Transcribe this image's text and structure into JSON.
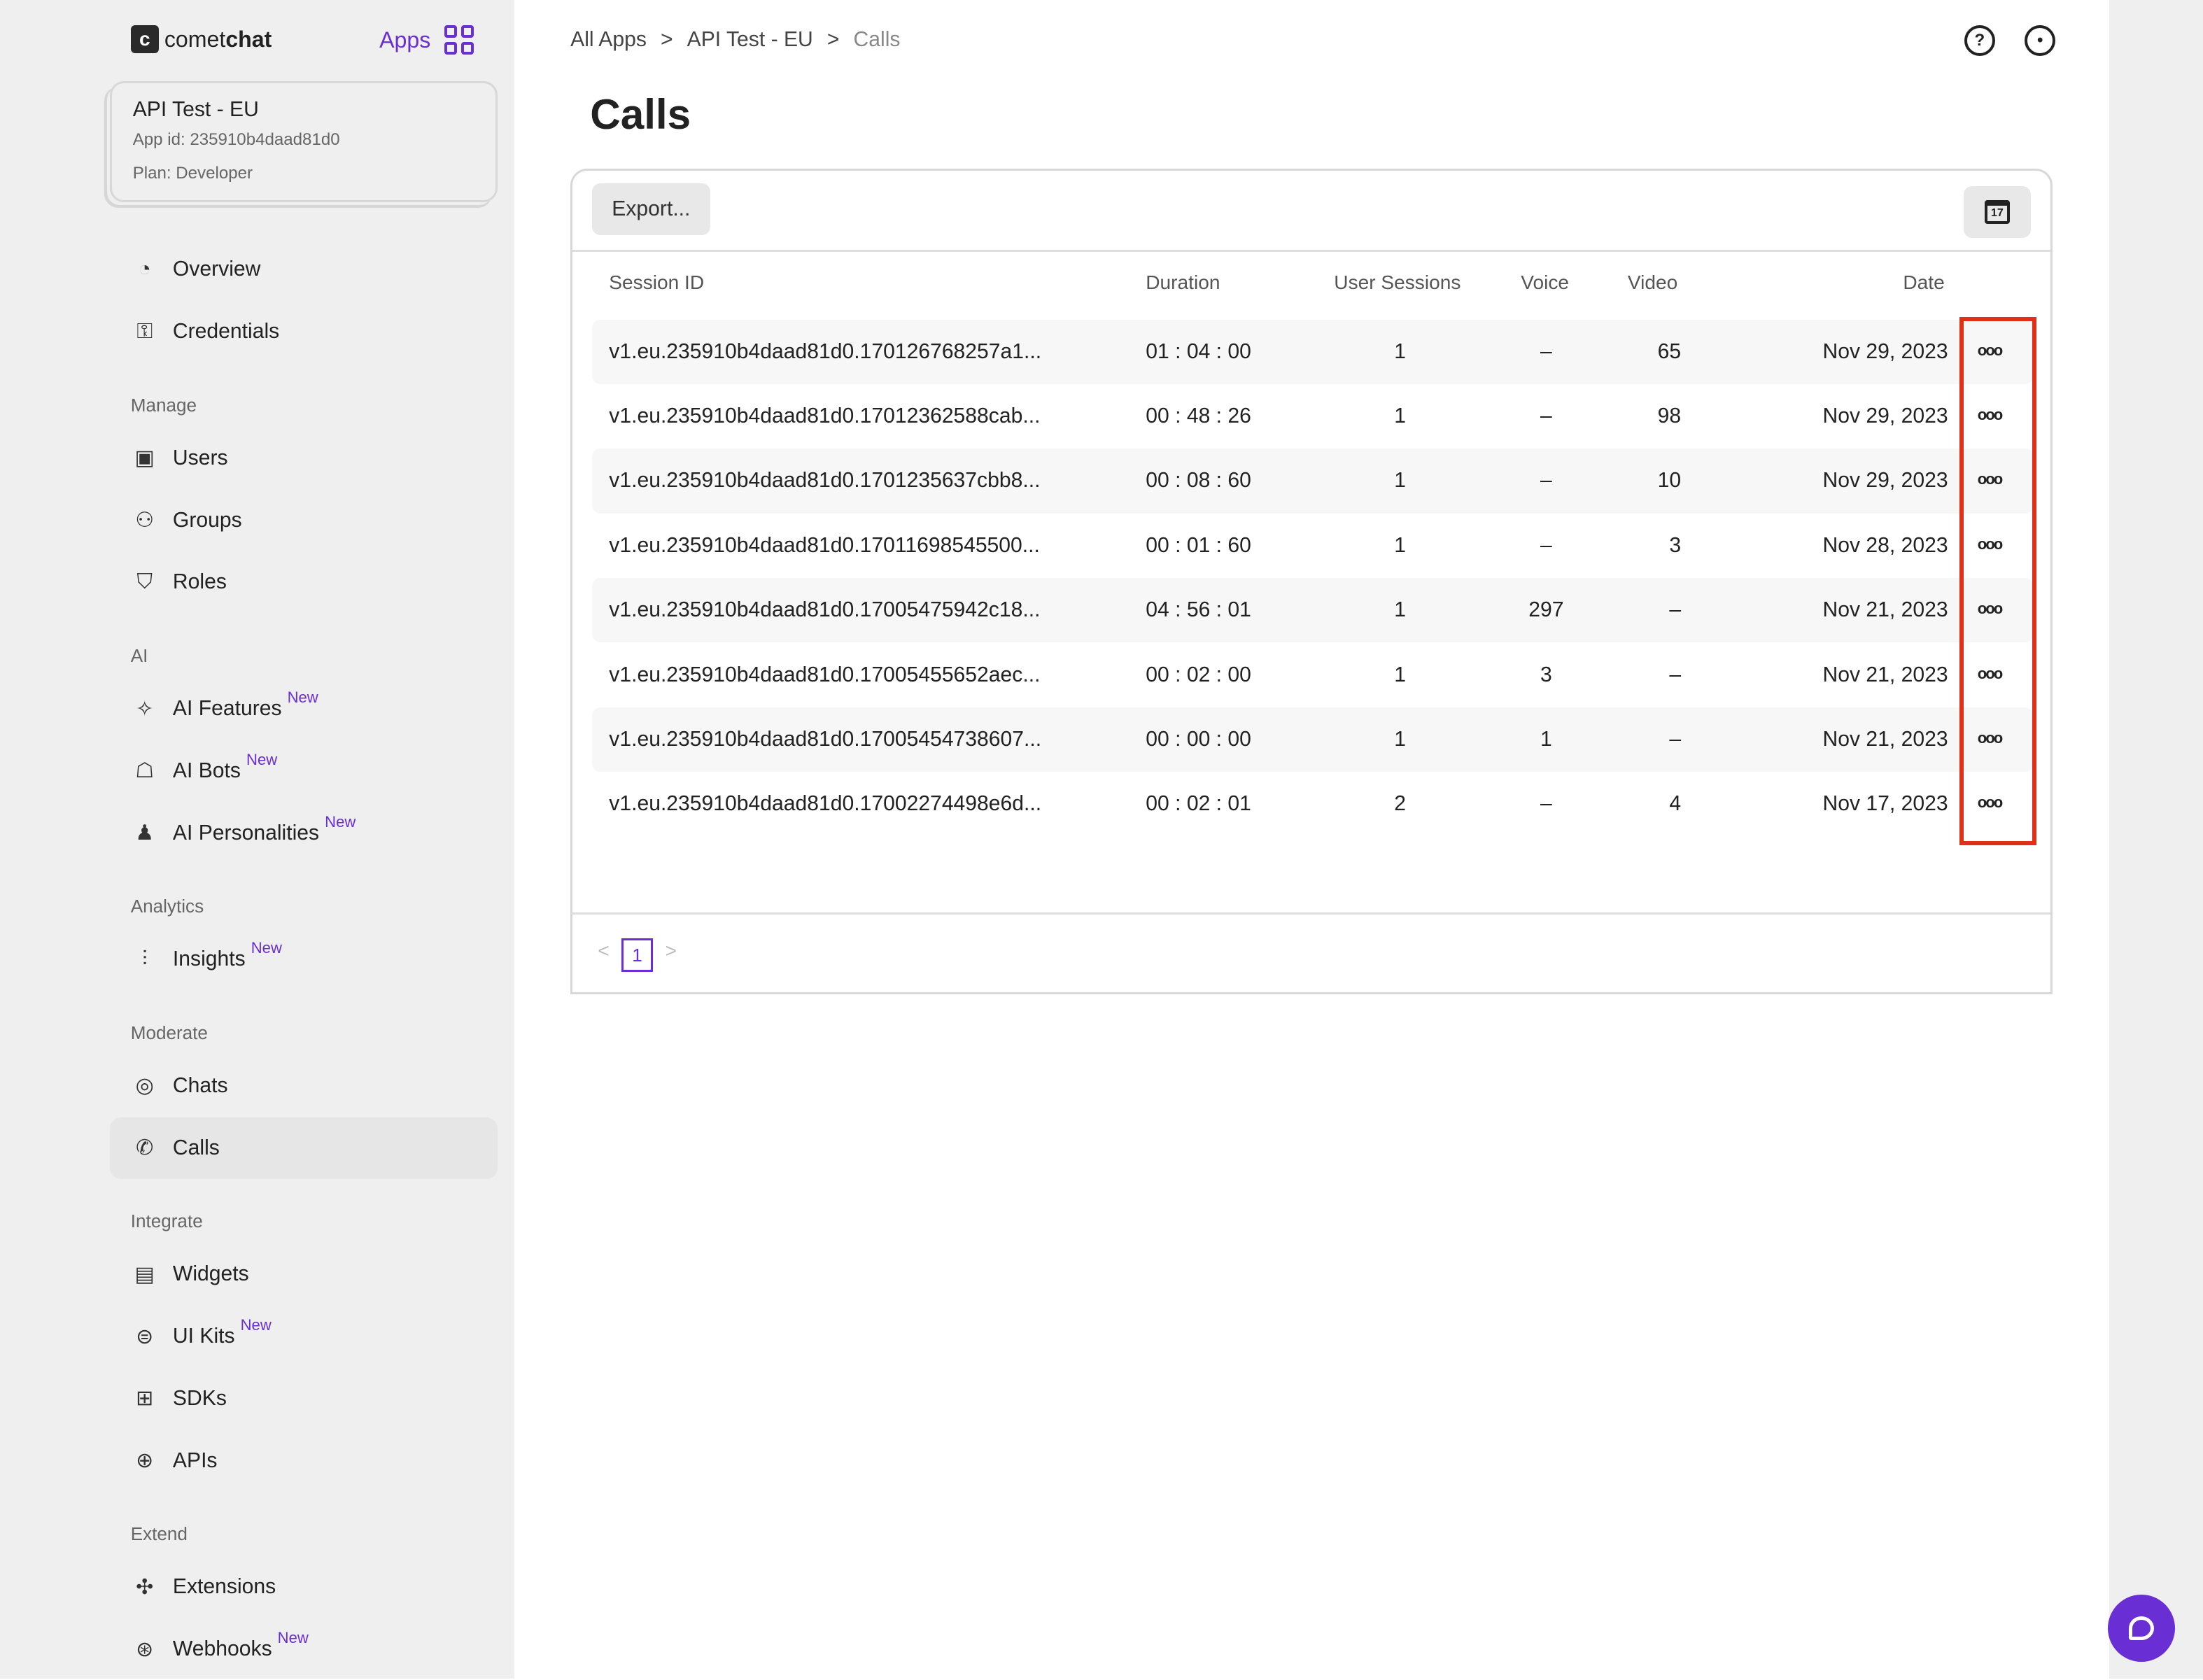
{
  "brand": {
    "logo_letter": "c",
    "name_light": "comet",
    "name_bold": "chat",
    "apps_label": "Apps"
  },
  "app": {
    "name": "API Test - EU",
    "app_id": "App id: 235910b4daad81d0",
    "plan": "Plan: Developer"
  },
  "sidebar": {
    "top": [
      {
        "label": "Overview",
        "icon": "gauge-icon"
      },
      {
        "label": "Credentials",
        "icon": "key-icon"
      }
    ],
    "sections": [
      {
        "title": "Manage",
        "items": [
          {
            "label": "Users",
            "icon": "user-badge-icon"
          },
          {
            "label": "Groups",
            "icon": "users-icon"
          },
          {
            "label": "Roles",
            "icon": "shield-user-icon"
          }
        ]
      },
      {
        "title": "AI",
        "items": [
          {
            "label": "AI Features",
            "icon": "sparkle-icon",
            "badge": "New"
          },
          {
            "label": "AI Bots",
            "icon": "robot-icon",
            "badge": "New"
          },
          {
            "label": "AI Personalities",
            "icon": "persona-icon",
            "badge": "New"
          }
        ]
      },
      {
        "title": "Analytics",
        "items": [
          {
            "label": "Insights",
            "icon": "chart-icon",
            "badge": "New"
          }
        ]
      },
      {
        "title": "Moderate",
        "items": [
          {
            "label": "Chats",
            "icon": "chat-search-icon"
          },
          {
            "label": "Calls",
            "icon": "phone-icon",
            "active": true
          }
        ]
      },
      {
        "title": "Integrate",
        "items": [
          {
            "label": "Widgets",
            "icon": "widget-icon"
          },
          {
            "label": "UI Kits",
            "icon": "toggle-icon",
            "badge": "New"
          },
          {
            "label": "SDKs",
            "icon": "blocks-icon"
          },
          {
            "label": "APIs",
            "icon": "globe-icon"
          }
        ]
      },
      {
        "title": "Extend",
        "items": [
          {
            "label": "Extensions",
            "icon": "puzzle-icon"
          },
          {
            "label": "Webhooks",
            "icon": "webhook-icon",
            "badge": "New"
          }
        ]
      }
    ]
  },
  "breadcrumb": [
    "All Apps",
    "API Test - EU",
    "Calls"
  ],
  "breadcrumb_sep": ">",
  "page_title": "Calls",
  "toolbar": {
    "export_label": "Export...",
    "calendar_day": "17"
  },
  "table": {
    "headers": [
      "Session ID",
      "Duration",
      "User Sessions",
      "Voice",
      "Video",
      "Date"
    ],
    "rows": [
      [
        "v1.eu.235910b4daad81d0.170126768257a1...",
        "01 : 04 : 00",
        "1",
        "–",
        "65",
        "Nov 29, 2023"
      ],
      [
        "v1.eu.235910b4daad81d0.17012362588cab...",
        "00 : 48 : 26",
        "1",
        "–",
        "98",
        "Nov 29, 2023"
      ],
      [
        "v1.eu.235910b4daad81d0.1701235637cbb8...",
        "00 : 08 : 60",
        "1",
        "–",
        "10",
        "Nov 29, 2023"
      ],
      [
        "v1.eu.235910b4daad81d0.17011698545500...",
        "00 : 01 : 60",
        "1",
        "–",
        "3",
        "Nov 28, 2023"
      ],
      [
        "v1.eu.235910b4daad81d0.17005475942c18...",
        "04 : 56 : 01",
        "1",
        "297",
        "–",
        "Nov 21, 2023"
      ],
      [
        "v1.eu.235910b4daad81d0.17005455652aec...",
        "00 : 02 : 00",
        "1",
        "3",
        "–",
        "Nov 21, 2023"
      ],
      [
        "v1.eu.235910b4daad81d0.17005454738607...",
        "00 : 00 : 00",
        "1",
        "1",
        "–",
        "Nov 21, 2023"
      ],
      [
        "v1.eu.235910b4daad81d0.17002274498e6d...",
        "00 : 02 : 01",
        "2",
        "–",
        "4",
        "Nov 17, 2023"
      ]
    ],
    "more_label": "ooo"
  },
  "pagination": {
    "current": "1",
    "prev": "<",
    "next": ">"
  },
  "colors": {
    "accent": "#6a2fd4",
    "highlight": "#e03018",
    "sidebar_bg": "#efefef"
  }
}
